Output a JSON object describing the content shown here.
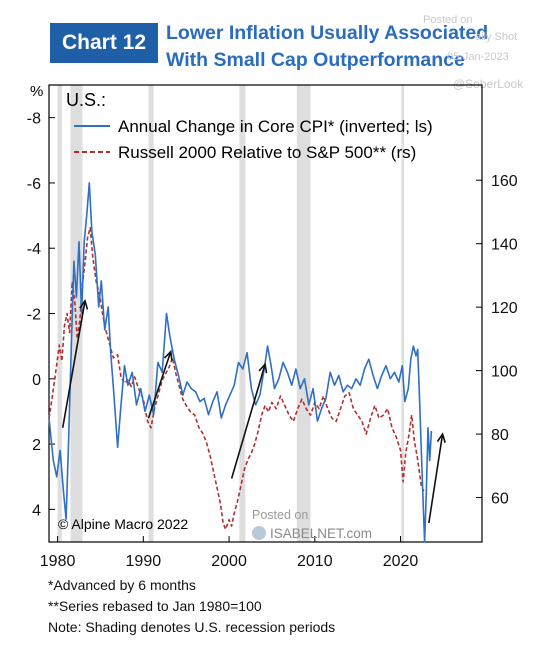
{
  "header": {
    "badge": "Chart 12",
    "title_line1": "Lower Inflation Usually Associated",
    "title_line2": "With Small Cap Outperformance"
  },
  "watermarks": {
    "posted_on": "Posted on",
    "site": "ISABELNET.com",
    "top_fragment_1": "Posted on",
    "top_fragment_2": "aily Shot",
    "top_date": "05-Jan-2023",
    "top_handle": "@SoberLook"
  },
  "copyright": "© Alpine Macro 2022",
  "notes": [
    "*Advanced by 6 months",
    "**Series rebased to Jan 1980=100",
    "Note: Shading denotes U.S. recession periods"
  ],
  "chart_data": {
    "type": "line",
    "region_label": "U.S.:",
    "left_axis_unit": "%",
    "left_axis": {
      "range": [
        5,
        -9
      ],
      "inverted": true,
      "ticks": [
        -8,
        -6,
        -4,
        -2,
        0,
        2,
        4
      ],
      "tick_labels": [
        "-8",
        "-6",
        "-4",
        "-2",
        "0",
        "2",
        "4"
      ]
    },
    "right_axis": {
      "range": [
        46,
        190
      ],
      "ticks": [
        60,
        80,
        100,
        120,
        140,
        160
      ],
      "tick_labels": [
        "60",
        "80",
        "100",
        "120",
        "140",
        "160"
      ]
    },
    "x_axis": {
      "range": [
        1979,
        2029.5
      ],
      "ticks": [
        1980,
        1990,
        2000,
        2010,
        2020
      ],
      "tick_labels": [
        "1980",
        "1990",
        "2000",
        "2010",
        "2020"
      ]
    },
    "recessions": [
      [
        1980.0,
        1980.5
      ],
      [
        1981.5,
        1982.9
      ],
      [
        1990.6,
        1991.2
      ],
      [
        2001.2,
        2001.9
      ],
      [
        2007.9,
        2009.5
      ],
      [
        2020.1,
        2020.4
      ]
    ],
    "series": [
      {
        "name": "Annual Change in Core CPI* (inverted; ls)",
        "axis": "left",
        "color": "#2f6fc4",
        "style": "solid",
        "points": [
          [
            1979.0,
            1.2
          ],
          [
            1979.5,
            2.5
          ],
          [
            1979.9,
            3.0
          ],
          [
            1980.3,
            2.2
          ],
          [
            1980.7,
            3.5
          ],
          [
            1981.0,
            4.3
          ],
          [
            1981.3,
            1.8
          ],
          [
            1981.6,
            -1.0
          ],
          [
            1981.9,
            -3.6
          ],
          [
            1982.2,
            -2.5
          ],
          [
            1982.5,
            -4.2
          ],
          [
            1982.8,
            -2.0
          ],
          [
            1983.1,
            -4.2
          ],
          [
            1983.4,
            -5.0
          ],
          [
            1983.7,
            -6.0
          ],
          [
            1984.0,
            -4.5
          ],
          [
            1984.4,
            -3.8
          ],
          [
            1984.8,
            -2.2
          ],
          [
            1985.1,
            -3.0
          ],
          [
            1985.5,
            -1.5
          ],
          [
            1985.9,
            -2.2
          ],
          [
            1986.2,
            -0.8
          ],
          [
            1986.6,
            0.6
          ],
          [
            1987.0,
            2.1
          ],
          [
            1987.4,
            0.8
          ],
          [
            1987.8,
            -0.4
          ],
          [
            1988.2,
            0.2
          ],
          [
            1988.7,
            -0.2
          ],
          [
            1989.2,
            0.8
          ],
          [
            1989.7,
            0.3
          ],
          [
            1990.2,
            1.0
          ],
          [
            1990.7,
            0.5
          ],
          [
            1991.2,
            1.1
          ],
          [
            1991.7,
            -0.5
          ],
          [
            1992.2,
            -0.2
          ],
          [
            1992.7,
            -2.0
          ],
          [
            1993.1,
            -1.3
          ],
          [
            1993.6,
            -0.6
          ],
          [
            1994.1,
            -0.1
          ],
          [
            1994.6,
            0.5
          ],
          [
            1995.1,
            0.1
          ],
          [
            1995.6,
            0.3
          ],
          [
            1996.1,
            0.4
          ],
          [
            1996.6,
            0.7
          ],
          [
            1997.1,
            0.6
          ],
          [
            1997.6,
            1.1
          ],
          [
            1998.1,
            0.7
          ],
          [
            1998.6,
            0.4
          ],
          [
            1999.1,
            1.2
          ],
          [
            1999.6,
            0.8
          ],
          [
            2000.1,
            0.5
          ],
          [
            2000.6,
            0.2
          ],
          [
            2001.1,
            -0.5
          ],
          [
            2001.6,
            -0.3
          ],
          [
            2002.1,
            -0.8
          ],
          [
            2002.6,
            0.3
          ],
          [
            2003.1,
            0.8
          ],
          [
            2003.6,
            0.5
          ],
          [
            2004.1,
            -0.3
          ],
          [
            2004.5,
            -1.0
          ],
          [
            2004.9,
            -0.4
          ],
          [
            2005.3,
            0.3
          ],
          [
            2005.8,
            0.0
          ],
          [
            2006.3,
            -0.5
          ],
          [
            2006.8,
            -0.2
          ],
          [
            2007.3,
            0.2
          ],
          [
            2007.8,
            -0.3
          ],
          [
            2008.3,
            0.3
          ],
          [
            2008.8,
            0.0
          ],
          [
            2009.3,
            0.8
          ],
          [
            2009.8,
            0.3
          ],
          [
            2010.3,
            1.3
          ],
          [
            2010.8,
            0.9
          ],
          [
            2011.3,
            0.6
          ],
          [
            2011.8,
            -0.2
          ],
          [
            2012.3,
            0.2
          ],
          [
            2012.8,
            -0.1
          ],
          [
            2013.3,
            0.4
          ],
          [
            2013.8,
            0.2
          ],
          [
            2014.3,
            0.3
          ],
          [
            2014.8,
            0.0
          ],
          [
            2015.3,
            0.2
          ],
          [
            2015.8,
            -0.3
          ],
          [
            2016.3,
            -0.6
          ],
          [
            2016.8,
            -0.1
          ],
          [
            2017.3,
            0.3
          ],
          [
            2017.8,
            -0.1
          ],
          [
            2018.3,
            -0.4
          ],
          [
            2018.8,
            0.0
          ],
          [
            2019.3,
            -0.2
          ],
          [
            2019.8,
            0.1
          ],
          [
            2020.2,
            -0.4
          ],
          [
            2020.5,
            0.7
          ],
          [
            2020.9,
            0.3
          ],
          [
            2021.2,
            -0.6
          ],
          [
            2021.5,
            -1.0
          ],
          [
            2021.8,
            -0.7
          ],
          [
            2022.0,
            -0.9
          ],
          [
            2022.2,
            0.5
          ],
          [
            2022.4,
            2.0
          ],
          [
            2022.6,
            3.5
          ],
          [
            2022.8,
            5.0
          ],
          [
            2023.0,
            3.5
          ],
          [
            2023.2,
            1.5
          ],
          [
            2023.4,
            2.5
          ],
          [
            2023.6,
            1.6
          ]
        ]
      },
      {
        "name": "Russell 2000 Relative to S&P 500** (rs)",
        "axis": "right",
        "color": "#b03030",
        "style": "dashed",
        "points": [
          [
            1979.0,
            85
          ],
          [
            1979.4,
            92
          ],
          [
            1979.8,
            100
          ],
          [
            1980.2,
            108
          ],
          [
            1980.5,
            103
          ],
          [
            1980.8,
            114
          ],
          [
            1981.1,
            118
          ],
          [
            1981.4,
            112
          ],
          [
            1981.7,
            128
          ],
          [
            1982.0,
            122
          ],
          [
            1982.3,
            110
          ],
          [
            1982.6,
            116
          ],
          [
            1982.9,
            127
          ],
          [
            1983.2,
            134
          ],
          [
            1983.5,
            142
          ],
          [
            1983.8,
            145
          ],
          [
            1984.1,
            136
          ],
          [
            1984.5,
            128
          ],
          [
            1984.9,
            124
          ],
          [
            1985.3,
            117
          ],
          [
            1985.7,
            112
          ],
          [
            1986.1,
            108
          ],
          [
            1986.5,
            104
          ],
          [
            1987.0,
            105
          ],
          [
            1987.4,
            98
          ],
          [
            1987.8,
            96
          ],
          [
            1988.2,
            97
          ],
          [
            1988.6,
            95
          ],
          [
            1989.0,
            98
          ],
          [
            1989.5,
            94
          ],
          [
            1990.0,
            91
          ],
          [
            1990.5,
            84
          ],
          [
            1990.9,
            82
          ],
          [
            1991.3,
            88
          ],
          [
            1991.7,
            92
          ],
          [
            1992.2,
            97
          ],
          [
            1992.6,
            99
          ],
          [
            1993.0,
            101
          ],
          [
            1993.4,
            104
          ],
          [
            1993.8,
            99
          ],
          [
            1994.2,
            95
          ],
          [
            1994.6,
            91
          ],
          [
            1995.0,
            89
          ],
          [
            1995.5,
            87
          ],
          [
            1996.0,
            86
          ],
          [
            1996.5,
            82
          ],
          [
            1997.0,
            80
          ],
          [
            1997.4,
            77
          ],
          [
            1997.8,
            73
          ],
          [
            1998.2,
            68
          ],
          [
            1998.6,
            63
          ],
          [
            1999.0,
            58
          ],
          [
            1999.3,
            52
          ],
          [
            1999.6,
            50
          ],
          [
            2000.0,
            53
          ],
          [
            2000.3,
            51
          ],
          [
            2000.6,
            55
          ],
          [
            2001.0,
            59
          ],
          [
            2001.4,
            64
          ],
          [
            2001.8,
            69
          ],
          [
            2002.2,
            72
          ],
          [
            2002.6,
            74
          ],
          [
            2003.0,
            77
          ],
          [
            2003.4,
            81
          ],
          [
            2003.8,
            86
          ],
          [
            2004.2,
            89
          ],
          [
            2004.6,
            87
          ],
          [
            2005.0,
            90
          ],
          [
            2005.5,
            88
          ],
          [
            2006.0,
            92
          ],
          [
            2006.5,
            89
          ],
          [
            2007.0,
            86
          ],
          [
            2007.5,
            84
          ],
          [
            2008.0,
            88
          ],
          [
            2008.5,
            91
          ],
          [
            2009.0,
            88
          ],
          [
            2009.5,
            86
          ],
          [
            2010.0,
            90
          ],
          [
            2010.5,
            88
          ],
          [
            2011.0,
            92
          ],
          [
            2011.5,
            88
          ],
          [
            2012.0,
            85
          ],
          [
            2012.5,
            84
          ],
          [
            2013.0,
            88
          ],
          [
            2013.5,
            92
          ],
          [
            2014.0,
            93
          ],
          [
            2014.5,
            88
          ],
          [
            2015.0,
            86
          ],
          [
            2015.5,
            84
          ],
          [
            2016.0,
            80
          ],
          [
            2016.5,
            85
          ],
          [
            2017.0,
            89
          ],
          [
            2017.5,
            85
          ],
          [
            2018.0,
            86
          ],
          [
            2018.5,
            88
          ],
          [
            2019.0,
            82
          ],
          [
            2019.5,
            79
          ],
          [
            2020.0,
            75
          ],
          [
            2020.3,
            65
          ],
          [
            2020.6,
            74
          ],
          [
            2021.0,
            80
          ],
          [
            2021.3,
            86
          ],
          [
            2021.6,
            78
          ],
          [
            2022.0,
            72
          ],
          [
            2022.4,
            64
          ],
          [
            2022.7,
            62
          ]
        ]
      }
    ],
    "arrows": [
      {
        "from": [
          1980.6,
          82
        ],
        "to": [
          1983.2,
          122
        ],
        "axis": "right"
      },
      {
        "from": [
          1990.6,
          85
        ],
        "to": [
          1993.2,
          106
        ],
        "axis": "right"
      },
      {
        "from": [
          2000.3,
          66
        ],
        "to": [
          2004.2,
          102
        ],
        "axis": "right"
      },
      {
        "from": [
          2023.3,
          52
        ],
        "to": [
          2024.9,
          80
        ],
        "axis": "right"
      }
    ]
  }
}
